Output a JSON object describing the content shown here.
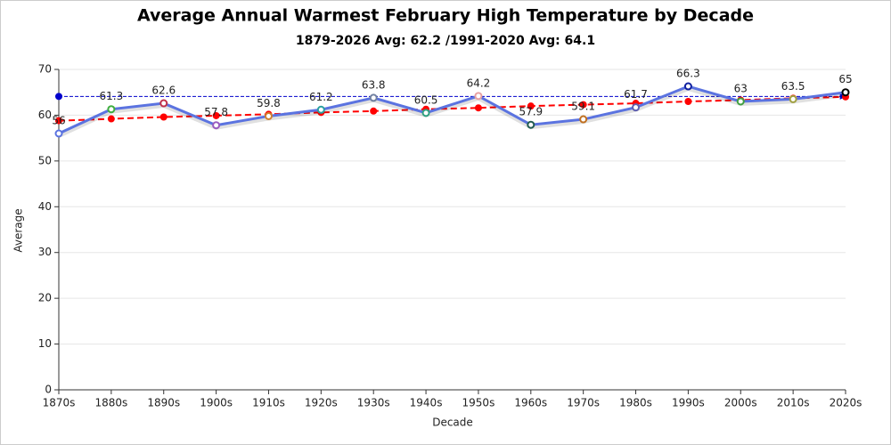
{
  "chart_data": {
    "type": "line",
    "title": "Average Annual Warmest February High Temperature by Decade",
    "subtitle": "1879-2026 Avg: 62.2 /1991-2020 Avg: 64.1",
    "x_label": "Decade",
    "y_label": "Average",
    "categories": [
      "1870s",
      "1880s",
      "1890s",
      "1900s",
      "1910s",
      "1920s",
      "1930s",
      "1940s",
      "1950s",
      "1960s",
      "1970s",
      "1980s",
      "1990s",
      "2000s",
      "2010s",
      "2020s"
    ],
    "series": [
      {
        "color": "#5b73e0",
        "values": [
          56,
          61.3,
          62.6,
          57.8,
          59.8,
          61.2,
          63.8,
          60.5,
          64.2,
          57.9,
          59.1,
          61.7,
          66.3,
          63,
          63.5,
          65
        ],
        "marker_colors": [
          "#5b73e0",
          "#3fae3f",
          "#c0304a",
          "#9a5cc0",
          "#d08030",
          "#2aa0a0",
          "#7080a0",
          "#30a080",
          "#e8a0a0",
          "#205a50",
          "#c07020",
          "#6060b0",
          "#1020a0",
          "#40a040",
          "#a0a040",
          "#000000"
        ],
        "data_labels": true
      },
      {
        "color": "#ff0000",
        "line_style": "dashed",
        "values": [
          58.8,
          59.2,
          59.6,
          59.9,
          60.2,
          60.6,
          60.9,
          61.3,
          61.6,
          62.0,
          62.3,
          62.6,
          63.0,
          63.3,
          63.7,
          64.0
        ]
      }
    ],
    "reference_lines": [
      {
        "value": 64.1,
        "color": "#0000cc"
      }
    ],
    "ylim": [
      0,
      70
    ],
    "yticks": [
      0,
      10,
      20,
      30,
      40,
      50,
      60,
      70
    ],
    "grid": true
  }
}
